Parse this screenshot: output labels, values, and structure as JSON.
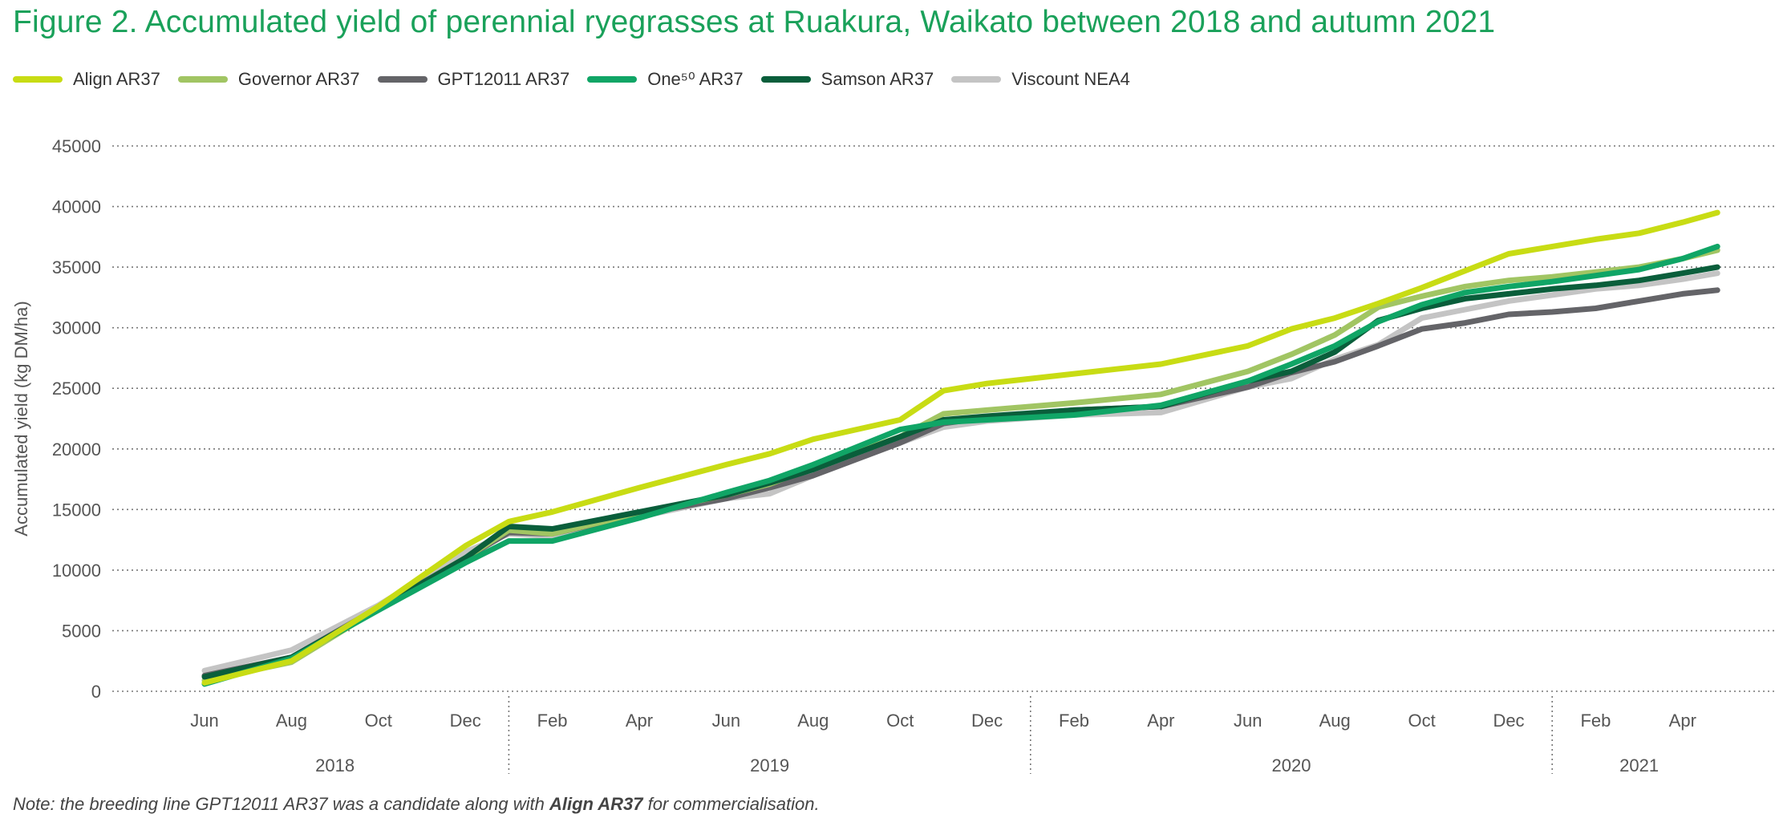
{
  "figure": {
    "title": "Figure 2. Accumulated yield of perennial ryegrasses at Ruakura, Waikato between 2018 and autumn 2021",
    "note_prefix": "Note: the breeding line GPT12011 AR37 was a candidate along with ",
    "note_bold": "Align AR37",
    "note_suffix": " for commercialisation."
  },
  "chart_data": {
    "type": "line",
    "title": "Figure 2. Accumulated yield of perennial ryegrasses at Ruakura, Waikato between 2018 and autumn 2021",
    "xlabel": "",
    "ylabel": "Accumulated yield (kg DM/ha)",
    "ylim": [
      0,
      45000
    ],
    "yticks": [
      0,
      5000,
      10000,
      15000,
      20000,
      25000,
      30000,
      35000,
      40000,
      45000
    ],
    "grid": true,
    "legend_position": "top-left",
    "month_ticks": [
      "Jun",
      "Aug",
      "Oct",
      "Dec",
      "Feb",
      "Apr",
      "Jun",
      "Aug",
      "Oct",
      "Dec",
      "Feb",
      "Apr",
      "Jun",
      "Aug",
      "Oct",
      "Dec",
      "Feb",
      "Apr"
    ],
    "years": [
      {
        "label": "2018",
        "start": 0,
        "end": 3
      },
      {
        "label": "2019",
        "start": 4,
        "end": 9
      },
      {
        "label": "2020",
        "start": 10,
        "end": 15
      },
      {
        "label": "2021",
        "start": 16,
        "end": 17
      }
    ],
    "x_unit": "months since Jun 2018",
    "series": [
      {
        "name": "Align AR37",
        "color": "#c8dc14",
        "x": [
          0,
          1,
          2,
          3,
          3.5,
          4,
          5,
          6,
          6.5,
          7,
          8,
          8.5,
          9,
          10,
          11,
          12,
          12.5,
          13,
          13.5,
          14,
          14.5,
          15,
          15.5,
          16,
          16.5,
          17,
          17.4
        ],
        "y": [
          700,
          2500,
          7000,
          12000,
          14000,
          14800,
          16800,
          18700,
          19600,
          20800,
          22400,
          24800,
          25400,
          26200,
          27000,
          28500,
          29900,
          30800,
          32000,
          33300,
          34700,
          36100,
          36700,
          37300,
          37800,
          38700,
          39500
        ]
      },
      {
        "name": "Governor AR37",
        "color": "#a1c563",
        "x": [
          0,
          1,
          2,
          3,
          3.5,
          4,
          5,
          6,
          6.5,
          7,
          8,
          8.5,
          9,
          10,
          11,
          12,
          12.5,
          13,
          13.5,
          14,
          14.5,
          15,
          15.5,
          16,
          16.5,
          17,
          17.4
        ],
        "y": [
          900,
          2400,
          6800,
          11000,
          13300,
          13000,
          14700,
          16200,
          17100,
          18500,
          21000,
          22900,
          23200,
          23800,
          24500,
          26400,
          27800,
          29400,
          31700,
          32600,
          33400,
          33900,
          34200,
          34600,
          35000,
          35700,
          36400
        ]
      },
      {
        "name": "GPT12011 AR37",
        "color": "#646468",
        "x": [
          0,
          1,
          2,
          3,
          3.5,
          4,
          5,
          6,
          6.5,
          7,
          8,
          8.5,
          9,
          10,
          11,
          12,
          12.5,
          13,
          13.5,
          14,
          14.5,
          15,
          15.5,
          16,
          16.5,
          17,
          17.4
        ],
        "y": [
          1300,
          2800,
          6900,
          11000,
          13100,
          13000,
          14600,
          15900,
          16800,
          17800,
          20500,
          22100,
          22600,
          23200,
          23500,
          25100,
          26300,
          27200,
          28500,
          29900,
          30400,
          31100,
          31300,
          31600,
          32200,
          32800,
          33100
        ]
      },
      {
        "name": "One⁵⁰ AR37",
        "color": "#10a566",
        "x": [
          0,
          1,
          2,
          3,
          3.5,
          4,
          5,
          6,
          6.5,
          7,
          8,
          8.5,
          9,
          10,
          11,
          12,
          12.5,
          13,
          13.5,
          14,
          14.5,
          15,
          15.5,
          16,
          16.5,
          17,
          17.4
        ],
        "y": [
          600,
          2700,
          6700,
          10600,
          12400,
          12400,
          14300,
          16400,
          17400,
          18700,
          21600,
          22200,
          22400,
          22800,
          23600,
          25600,
          27000,
          28500,
          30500,
          31900,
          32900,
          33400,
          33800,
          34300,
          34800,
          35700,
          36700
        ]
      },
      {
        "name": "Samson AR37",
        "color": "#0a5e3b",
        "x": [
          0,
          1,
          2,
          3,
          3.5,
          4,
          5,
          6,
          6.5,
          7,
          8,
          8.5,
          9,
          10,
          11,
          12,
          12.5,
          13,
          13.5,
          14,
          14.5,
          15,
          15.5,
          16,
          16.5,
          17,
          17.4
        ],
        "y": [
          1200,
          2800,
          6800,
          11000,
          13600,
          13400,
          14800,
          16200,
          17200,
          18300,
          21000,
          22400,
          22700,
          23200,
          23500,
          25600,
          26400,
          28000,
          30600,
          31600,
          32400,
          32800,
          33200,
          33500,
          33900,
          34500,
          35000
        ]
      },
      {
        "name": "Viscount NEA4",
        "color": "#c4c4c4",
        "x": [
          0,
          1,
          2,
          3,
          3.5,
          4,
          5,
          6,
          6.5,
          7,
          8,
          8.5,
          9,
          10,
          11,
          12,
          12.5,
          13,
          13.5,
          14,
          14.5,
          15,
          15.5,
          16,
          16.5,
          17,
          17.4
        ],
        "y": [
          1700,
          3400,
          7100,
          11500,
          13000,
          12800,
          14400,
          15900,
          16300,
          17800,
          20500,
          21800,
          22300,
          22800,
          23000,
          25100,
          25800,
          27400,
          28600,
          30800,
          31500,
          32200,
          32700,
          33200,
          33500,
          34000,
          34500
        ]
      }
    ]
  }
}
